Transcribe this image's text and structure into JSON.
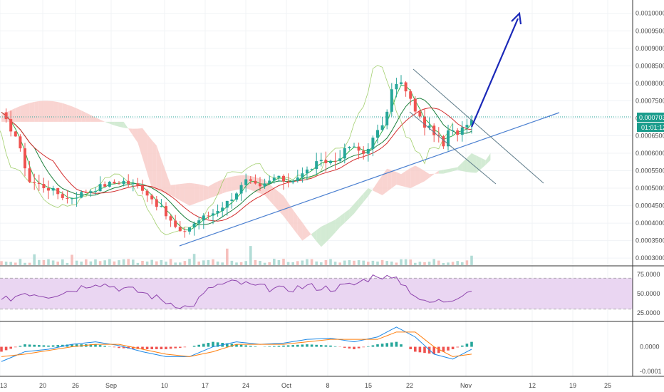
{
  "chart_data": [
    {
      "type": "candlestick",
      "panel": "price",
      "price_axis_ticks": [
        "0.0010000",
        "0.0009500",
        "0.0009000",
        "0.0008500",
        "0.0008000",
        "0.0007500",
        "0.0007000",
        "0.0006500",
        "0.0006000",
        "0.0005500",
        "0.0005000",
        "0.0004500",
        "0.0004000",
        "0.0003500",
        "0.0003000"
      ],
      "ylim": [
        0.00028,
        0.00103
      ],
      "current_price_label": "0.0007034",
      "countdown_label": "01:01:12",
      "series_anchors": {
        "close_path_x_day": [
          0,
          3,
          6,
          10,
          14,
          18,
          22,
          26,
          30,
          34,
          38,
          42,
          45,
          48,
          50,
          52,
          55,
          58,
          61,
          64,
          67,
          71,
          74,
          77,
          80,
          82,
          83,
          85,
          87,
          89,
          90,
          92,
          94,
          95,
          97,
          99,
          100
        ],
        "close_path_y": [
          0.00071,
          0.00065,
          0.00052,
          0.0005,
          0.00047,
          0.00049,
          0.00051,
          0.00052,
          0.0005,
          0.00044,
          0.00037,
          0.00041,
          0.00043,
          0.00046,
          0.00049,
          0.00052,
          0.0005,
          0.00053,
          0.00052,
          0.00054,
          0.00057,
          0.00058,
          0.00062,
          0.0006,
          0.00066,
          0.00071,
          0.00079,
          0.0008,
          0.00075,
          0.0007,
          0.00068,
          0.00066,
          0.00062,
          0.00066,
          0.00066,
          0.00069,
          0.0007
        ]
      },
      "overlays": [
        "Ichimoku cloud",
        "moving averages"
      ],
      "annotations": [
        "rising support trendline",
        "descending channel lines",
        "blue breakout arrow"
      ]
    },
    {
      "type": "line",
      "panel": "RSI",
      "axis_ticks": [
        "75.0000",
        "50.0000",
        "25.0000"
      ],
      "ylim": [
        15,
        85
      ],
      "band": [
        30,
        70
      ],
      "anchors": {
        "x_day": [
          0,
          5,
          10,
          15,
          20,
          25,
          30,
          35,
          40,
          45,
          50,
          55,
          60,
          65,
          70,
          75,
          80,
          85,
          90,
          95,
          100
        ],
        "y": [
          40,
          52,
          48,
          55,
          65,
          58,
          52,
          40,
          32,
          60,
          65,
          58,
          55,
          60,
          57,
          62,
          75,
          65,
          38,
          42,
          56
        ]
      }
    },
    {
      "type": "macd",
      "panel": "MACD",
      "axis_ticks": [
        "0.0000",
        "-0.0001"
      ],
      "ylim": [
        -0.00012,
        0.0001
      ],
      "anchors": {
        "x_day": [
          0,
          5,
          10,
          15,
          20,
          25,
          30,
          35,
          40,
          45,
          50,
          55,
          60,
          65,
          70,
          75,
          80,
          84,
          88,
          92,
          96,
          100
        ],
        "macd": [
          -6e-05,
          -2e-05,
          -1e-05,
          1e-05,
          2e-05,
          5e-06,
          -2e-05,
          -4e-05,
          -4e-05,
          0.0,
          2e-05,
          1e-05,
          1.5e-05,
          3e-05,
          3.5e-05,
          2e-05,
          4e-05,
          8e-05,
          4e-05,
          -3e-05,
          -5e-05,
          -1e-05
        ],
        "signal": [
          -4e-05,
          -3e-05,
          -1.5e-05,
          0.0,
          1e-05,
          1e-05,
          -1e-05,
          -3e-05,
          -4e-05,
          -2e-05,
          1e-05,
          1e-05,
          1e-05,
          2e-05,
          3e-05,
          3e-05,
          3e-05,
          6e-05,
          6e-05,
          0.0,
          -4e-05,
          -3e-05
        ]
      }
    }
  ],
  "time_axis_labels": [
    "13",
    "20",
    "26",
    "Sep",
    "10",
    "17",
    "24",
    "Oct",
    "8",
    "15",
    "22",
    "Nov",
    "12",
    "19",
    "25"
  ],
  "colors": {
    "up": "#26a69a",
    "down": "#ef5350",
    "trendline": "#4a7fd0",
    "channel": "#607d8b",
    "arrow": "#1a28b8",
    "rsi": "#8e44ad",
    "rsi_band": "#ead6f2",
    "macd_line": "#1e88e5",
    "signal_line": "#ff7f0e",
    "price_label_bg": "#1a9c8c",
    "cloud_bull": "#c8e6c9",
    "cloud_bear": "#f8c9c6"
  }
}
